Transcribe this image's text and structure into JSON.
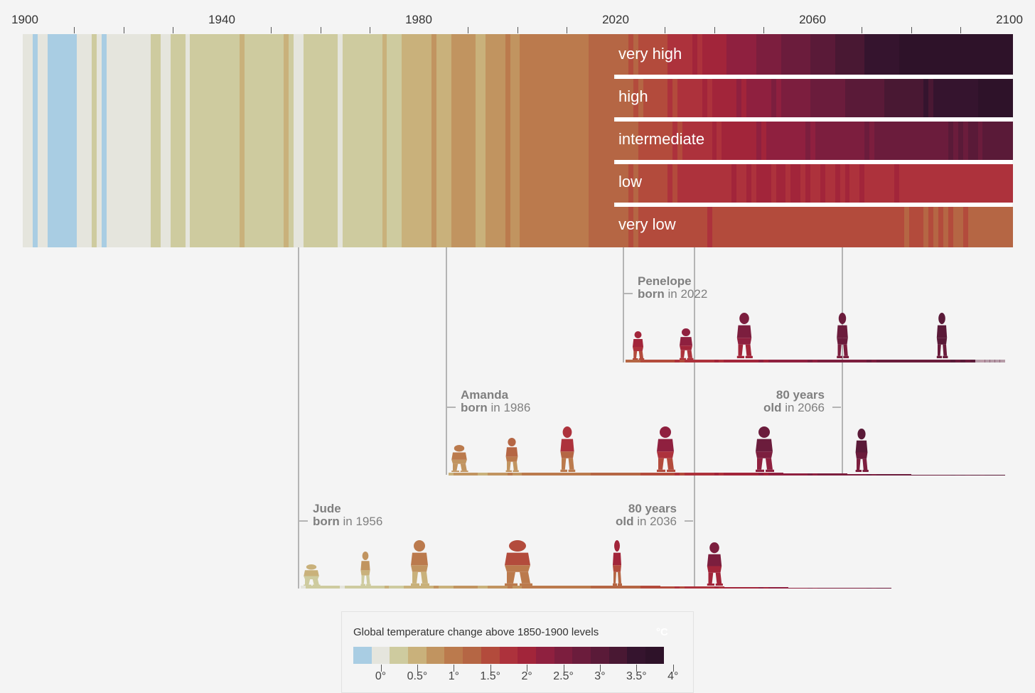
{
  "chart_data": {
    "type": "heatmap",
    "title": "Global temperature change above 1850-1900 levels",
    "unit": "°C",
    "x_axis": {
      "range": [
        1900,
        2100
      ],
      "tick_labels": [
        "1900",
        "1940",
        "1980",
        "2020",
        "2060",
        "2100"
      ]
    },
    "historical": {
      "start_year": 1900,
      "values": [
        0.0,
        0.0,
        -0.2,
        -0.05,
        -0.05,
        -0.2,
        -0.2,
        -0.25,
        -0.2,
        -0.2,
        -0.2,
        0.0,
        0.0,
        0.05,
        0.2,
        0.05,
        -0.2,
        0.0,
        0.0,
        0.05,
        0.05,
        0.1,
        0.05,
        0.05,
        0.0,
        0.1,
        0.3,
        0.15,
        0.1,
        0.0,
        0.2,
        0.2,
        0.2,
        0.1,
        0.2,
        0.15,
        0.25,
        0.3,
        0.3,
        0.3,
        0.35,
        0.35,
        0.3,
        0.3,
        0.45,
        0.35,
        0.25,
        0.25,
        0.25,
        0.2,
        0.15,
        0.25,
        0.3,
        0.4,
        0.15,
        0.1,
        0.1,
        0.3,
        0.35,
        0.3,
        0.3,
        0.35,
        0.3,
        0.35,
        0.1,
        0.15,
        0.25,
        0.3,
        0.25,
        0.35,
        0.3,
        0.2,
        0.3,
        0.45,
        0.2,
        0.25,
        0.2,
        0.45,
        0.4,
        0.45,
        0.55,
        0.6,
        0.45,
        0.65,
        0.45,
        0.45,
        0.55,
        0.7,
        0.75,
        0.65,
        0.8,
        0.75,
        0.55,
        0.6,
        0.7,
        0.8,
        0.7,
        0.85,
        1.05,
        0.8,
        0.8,
        0.95,
        1.0,
        1.0,
        0.95,
        1.05,
        1.0,
        1.0,
        0.95,
        1.0,
        1.1,
        0.95,
        1.0,
        1.05,
        1.1,
        1.25,
        1.35,
        1.3,
        1.2,
        1.3
      ]
    },
    "scenarios": [
      {
        "name": "very high",
        "start_year": 2020,
        "values": [
          1.3,
          1.25,
          1.3,
          1.4,
          1.35,
          1.45,
          1.5,
          1.4,
          1.55,
          1.6,
          1.5,
          1.65,
          1.7,
          1.75,
          1.7,
          1.85,
          1.9,
          1.8,
          1.95,
          2.0,
          2.05,
          1.95,
          2.1,
          2.2,
          2.15,
          2.25,
          2.3,
          2.35,
          2.3,
          2.45,
          2.5,
          2.55,
          2.5,
          2.6,
          2.7,
          2.65,
          2.75,
          2.8,
          2.85,
          2.8,
          2.95,
          3.0,
          3.05,
          3.0,
          3.1,
          3.15,
          3.2,
          3.15,
          3.3,
          3.35,
          3.3,
          3.4,
          3.45,
          3.5,
          3.45,
          3.55,
          3.6,
          3.6,
          3.65,
          3.7,
          3.75,
          3.7,
          3.8,
          3.85,
          3.9,
          3.85,
          3.95,
          4.0,
          4.0,
          4.05,
          4.1,
          4.1,
          4.15,
          4.2,
          4.15,
          4.2,
          4.25,
          4.3,
          4.3,
          4.3,
          4.35
        ]
      },
      {
        "name": "high",
        "start_year": 2020,
        "values": [
          1.3,
          1.25,
          1.3,
          1.35,
          1.4,
          1.35,
          1.5,
          1.45,
          1.55,
          1.5,
          1.6,
          1.65,
          1.6,
          1.7,
          1.75,
          1.8,
          1.75,
          1.85,
          1.9,
          1.85,
          1.95,
          2.0,
          2.05,
          2.0,
          2.1,
          2.15,
          2.1,
          2.2,
          2.25,
          2.3,
          2.25,
          2.35,
          2.4,
          2.35,
          2.45,
          2.5,
          2.5,
          2.55,
          2.6,
          2.55,
          2.65,
          2.7,
          2.7,
          2.75,
          2.8,
          2.75,
          2.85,
          2.9,
          2.9,
          2.95,
          3.0,
          2.95,
          3.05,
          3.1,
          3.05,
          3.15,
          3.2,
          3.15,
          3.25,
          3.3,
          3.25,
          3.3,
          3.35,
          3.4,
          3.35,
          3.45,
          3.5,
          3.45,
          3.5,
          3.55,
          3.55,
          3.6,
          3.6,
          3.55,
          3.65,
          3.65,
          3.7,
          3.7,
          3.65,
          3.75,
          3.75
        ]
      },
      {
        "name": "intermediate",
        "start_year": 2020,
        "values": [
          1.3,
          1.25,
          1.3,
          1.35,
          1.3,
          1.45,
          1.4,
          1.5,
          1.45,
          1.55,
          1.5,
          1.6,
          1.65,
          1.6,
          1.7,
          1.75,
          1.7,
          1.8,
          1.75,
          1.85,
          1.9,
          1.85,
          1.95,
          1.9,
          2.0,
          2.05,
          2.0,
          2.1,
          2.05,
          2.15,
          2.1,
          2.2,
          2.2,
          2.25,
          2.2,
          2.3,
          2.3,
          2.35,
          2.3,
          2.4,
          2.35,
          2.45,
          2.4,
          2.5,
          2.45,
          2.5,
          2.55,
          2.5,
          2.6,
          2.55,
          2.6,
          2.65,
          2.6,
          2.65,
          2.7,
          2.65,
          2.7,
          2.75,
          2.7,
          2.75,
          2.8,
          2.75,
          2.8,
          2.75,
          2.85,
          2.8,
          2.85,
          2.8,
          2.9,
          2.85,
          2.9,
          2.85,
          2.9,
          2.9,
          2.85,
          2.95,
          2.9,
          2.95,
          2.9,
          2.95,
          2.95
        ]
      },
      {
        "name": "low",
        "start_year": 2020,
        "values": [
          1.3,
          1.25,
          1.3,
          1.4,
          1.35,
          1.45,
          1.5,
          1.45,
          1.55,
          1.6,
          1.5,
          1.65,
          1.6,
          1.7,
          1.65,
          1.75,
          1.7,
          1.8,
          1.75,
          1.7,
          1.85,
          1.8,
          1.75,
          1.85,
          1.9,
          1.8,
          1.85,
          1.9,
          1.85,
          1.95,
          1.9,
          2.05,
          1.85,
          1.9,
          1.95,
          1.85,
          1.9,
          2.0,
          1.85,
          1.9,
          1.8,
          1.85,
          1.9,
          1.85,
          1.8,
          1.9,
          1.85,
          2.0,
          1.8,
          1.85,
          1.9,
          1.8,
          1.85,
          1.8,
          1.75,
          1.85,
          1.8,
          1.9,
          1.8,
          1.75,
          1.8,
          1.85,
          1.75,
          1.8,
          1.75,
          1.7,
          1.8,
          1.75,
          1.7,
          1.75,
          1.8,
          1.7,
          1.75,
          1.7,
          1.75,
          1.7,
          1.65,
          1.75,
          1.7,
          1.75,
          1.7
        ]
      },
      {
        "name": "very low",
        "start_year": 2020,
        "values": [
          1.3,
          1.25,
          1.3,
          1.4,
          1.35,
          1.45,
          1.5,
          1.4,
          1.45,
          1.55,
          1.5,
          1.5,
          1.6,
          1.45,
          1.5,
          1.55,
          1.5,
          1.45,
          1.55,
          1.7,
          1.5,
          1.55,
          1.5,
          1.6,
          1.45,
          1.55,
          1.5,
          1.5,
          1.55,
          1.45,
          1.5,
          1.55,
          1.5,
          1.45,
          1.55,
          1.5,
          1.5,
          1.45,
          1.5,
          1.55,
          1.5,
          1.45,
          1.5,
          1.45,
          1.5,
          1.4,
          1.45,
          1.5,
          1.45,
          1.4,
          1.45,
          1.5,
          1.45,
          1.4,
          1.45,
          1.4,
          1.4,
          1.45,
          1.4,
          1.35,
          1.45,
          1.4,
          1.4,
          1.35,
          1.4,
          1.35,
          1.4,
          1.35,
          1.4,
          1.35,
          1.3,
          1.4,
          1.35,
          1.3,
          1.35,
          1.3,
          1.35,
          1.3,
          1.35,
          1.3,
          1.35
        ]
      }
    ],
    "people": [
      {
        "name": "Penelope",
        "born_prefix": "born",
        "born_suffix": "in 2022",
        "birth_year": 2022
      },
      {
        "name": "Amanda",
        "born_prefix": "born",
        "born_suffix": "in 1986",
        "birth_year": 1986,
        "age_line1": "80 years",
        "age_prefix": "old",
        "age_suffix": "in 2066",
        "age_year": 2066
      },
      {
        "name": "Jude",
        "born_prefix": "born",
        "born_suffix": "in 1956",
        "birth_year": 1956,
        "age_line1": "80 years",
        "age_prefix": "old",
        "age_suffix": "in 2036",
        "age_year": 2036
      }
    ],
    "legend": {
      "title": "Global temperature change above 1850-1900 levels",
      "unit": "°C",
      "bin_width": 0.25,
      "bin_start": -0.375,
      "colors": [
        "#a9cde3",
        "#e5e5dd",
        "#cecb9f",
        "#c9b17b",
        "#c19460",
        "#bb7a4d",
        "#b56644",
        "#b34b3c",
        "#ad323c",
        "#a2253a",
        "#8f203f",
        "#7c1e3e",
        "#6b1c3c",
        "#5a1a38",
        "#491833",
        "#35142e",
        "#2e1229"
      ],
      "tick_labels": [
        "0°",
        "0.5°",
        "1°",
        "1.5°",
        "2°",
        "2.5°",
        "3°",
        "3.5°",
        "4°"
      ],
      "tick_values": [
        0,
        0.5,
        1,
        1.5,
        2,
        2.5,
        3,
        3.5,
        4
      ]
    }
  }
}
